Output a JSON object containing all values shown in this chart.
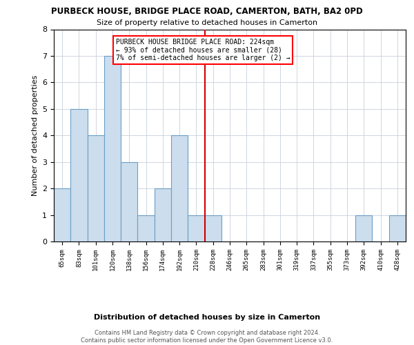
{
  "title": "PURBECK HOUSE, BRIDGE PLACE ROAD, CAMERTON, BATH, BA2 0PD",
  "subtitle": "Size of property relative to detached houses in Camerton",
  "xlabel": "Distribution of detached houses by size in Camerton",
  "ylabel": "Number of detached properties",
  "bar_labels": [
    "65sqm",
    "83sqm",
    "101sqm",
    "120sqm",
    "138sqm",
    "156sqm",
    "174sqm",
    "192sqm",
    "210sqm",
    "228sqm",
    "246sqm",
    "265sqm",
    "283sqm",
    "301sqm",
    "319sqm",
    "337sqm",
    "355sqm",
    "373sqm",
    "392sqm",
    "410sqm",
    "428sqm"
  ],
  "bar_values": [
    2,
    5,
    4,
    7,
    3,
    1,
    2,
    4,
    1,
    1,
    0,
    0,
    0,
    0,
    0,
    0,
    0,
    0,
    1,
    0,
    1
  ],
  "bar_color": "#ccdded",
  "bar_edge_color": "#6a9ec5",
  "vline_color": "#cc0000",
  "annotation_text": "PURBECK HOUSE BRIDGE PLACE ROAD: 224sqm\n← 93% of detached houses are smaller (28)\n7% of semi-detached houses are larger (2) →",
  "ylim_max": 8,
  "footer_line1": "Contains HM Land Registry data © Crown copyright and database right 2024.",
  "footer_line2": "Contains public sector information licensed under the Open Government Licence v3.0.",
  "background_color": "#ffffff",
  "grid_color": "#c8d0dc"
}
